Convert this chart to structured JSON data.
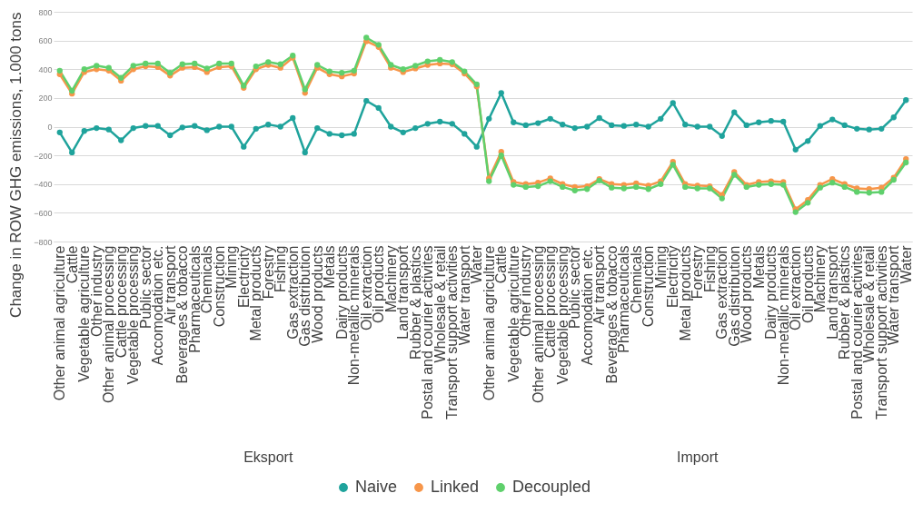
{
  "chart_data": {
    "type": "line",
    "ylabel": "Change in ROW GHG emissions, 1.000 tons",
    "categories": [
      "Other animal agriculture",
      "Cattle",
      "Vegetable agriculture",
      "Other industry",
      "Other animal processing",
      "Cattle processing",
      "Vegetable processing",
      "Public sector",
      "Accomodation etc.",
      "Air transport",
      "Beverages & tobacco",
      "Pharmaceuticals",
      "Chemicals",
      "Construction",
      "Mining",
      "Electricity",
      "Metal products",
      "Forestry",
      "Fishing",
      "Gas extraction",
      "Gas distribution",
      "Wood products",
      "Metals",
      "Dairy products",
      "Non-metallic minerals",
      "Oil extraction",
      "Oil products",
      "Machinery",
      "Land transport",
      "Rubber & plastics",
      "Postal and courier activites",
      "Wholesale & retail",
      "Transport support activities",
      "Water transport",
      "Water",
      "Other animal agriculture",
      "Cattle",
      "Vegetable agriculture",
      "Other industry",
      "Other animal processing",
      "Cattle processing",
      "Vegetable processing",
      "Public sector",
      "Accomodation etc.",
      "Air transport",
      "Beverages & tobacco",
      "Pharmaceuticals",
      "Chemicals",
      "Construction",
      "Mining",
      "Electricity",
      "Metal products",
      "Forestry",
      "Fishing",
      "Gas extraction",
      "Gas distribution",
      "Wood products",
      "Metals",
      "Dairy products",
      "Non-metallic minerals",
      "Oil extraction",
      "Oil products",
      "Machinery",
      "Land transport",
      "Rubber & plastics",
      "Postal and courier activites",
      "Wholesale & retail",
      "Transport support activities",
      "Water transport",
      "Water"
    ],
    "series": [
      {
        "name": "Naive",
        "color": "#1fa39c",
        "values": [
          -40,
          -180,
          -30,
          -10,
          -20,
          -95,
          -10,
          5,
          5,
          -60,
          -5,
          5,
          -25,
          0,
          0,
          -140,
          -15,
          15,
          0,
          60,
          -180,
          -10,
          -50,
          -60,
          -50,
          180,
          130,
          0,
          -40,
          -10,
          20,
          35,
          20,
          -50,
          -140,
          55,
          235,
          30,
          10,
          25,
          55,
          15,
          -10,
          0,
          60,
          10,
          5,
          15,
          0,
          55,
          165,
          15,
          0,
          0,
          -65,
          100,
          10,
          30,
          40,
          35,
          -160,
          -100,
          5,
          50,
          10,
          -15,
          -20,
          -15,
          65,
          185
        ]
      },
      {
        "name": "Linked",
        "color": "#f7964a",
        "values": [
          365,
          230,
          380,
          400,
          390,
          320,
          400,
          420,
          415,
          355,
          410,
          415,
          380,
          415,
          420,
          270,
          400,
          430,
          410,
          480,
          235,
          410,
          365,
          350,
          370,
          595,
          555,
          410,
          380,
          405,
          430,
          440,
          435,
          370,
          280,
          -360,
          -175,
          -385,
          -400,
          -390,
          -360,
          -400,
          -420,
          -415,
          -365,
          -400,
          -405,
          -395,
          -410,
          -380,
          -245,
          -400,
          -410,
          -415,
          -475,
          -315,
          -405,
          -385,
          -380,
          -385,
          -575,
          -510,
          -405,
          -365,
          -400,
          -430,
          -435,
          -425,
          -355,
          -225
        ]
      },
      {
        "name": "Decoupled",
        "color": "#5fd06c",
        "values": [
          390,
          250,
          400,
          425,
          410,
          340,
          425,
          440,
          440,
          375,
          435,
          440,
          405,
          440,
          440,
          285,
          420,
          450,
          435,
          495,
          260,
          430,
          385,
          375,
          390,
          620,
          570,
          430,
          400,
          425,
          455,
          465,
          450,
          385,
          295,
          -380,
          -200,
          -405,
          -420,
          -415,
          -380,
          -420,
          -445,
          -435,
          -375,
          -425,
          -430,
          -420,
          -435,
          -400,
          -265,
          -420,
          -430,
          -430,
          -500,
          -335,
          -420,
          -405,
          -400,
          -405,
          -595,
          -530,
          -425,
          -390,
          -420,
          -455,
          -460,
          -455,
          -370,
          -250
        ]
      }
    ],
    "ylim": [
      -800,
      800
    ],
    "yticks": [
      -800,
      -600,
      -400,
      -200,
      0,
      200,
      400,
      600,
      800
    ],
    "grid": "y",
    "legend": "bottom",
    "marker": "circle",
    "line_style": "solid",
    "annotations": [
      "Eksport",
      "Import"
    ]
  }
}
